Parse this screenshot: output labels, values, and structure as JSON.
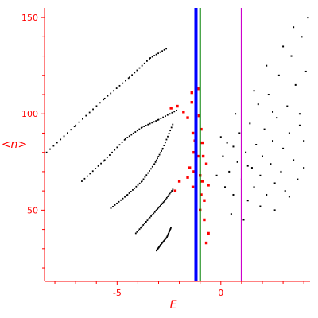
{
  "chart_data": {
    "type": "scatter",
    "title": "",
    "xlabel": "E",
    "ylabel": "<n>",
    "xlim": [
      -8.5,
      4.3
    ],
    "ylim": [
      13,
      155
    ],
    "x_ticks": [
      -5,
      0
    ],
    "y_ticks": [
      50,
      100,
      150
    ],
    "x_tick_labels": [
      "-5",
      "0"
    ],
    "y_tick_labels": [
      "50",
      "100",
      "150"
    ],
    "grid": false,
    "legend": "none",
    "colors": {
      "axis": "#ff0000",
      "black_points": "#000000",
      "red_points": "#ff0000",
      "blue_line": "#0000ff",
      "green_line": "#008000",
      "magenta_line": "#cc00cc"
    },
    "vertical_lines": [
      {
        "x": -1.2,
        "color": "#0000ff"
      },
      {
        "x": -1.0,
        "color": "#008000"
      },
      {
        "x": 1.0,
        "color": "#cc00cc"
      }
    ],
    "series": [
      {
        "color": "#000000",
        "style": "dotted-curve",
        "points": [
          [
            -8.4,
            80
          ],
          [
            -7.0,
            94
          ],
          [
            -5.6,
            108
          ],
          [
            -4.4,
            119
          ],
          [
            -3.4,
            129
          ],
          [
            -2.6,
            134
          ]
        ]
      },
      {
        "color": "#000000",
        "style": "dotted-curve",
        "points": [
          [
            -6.7,
            65
          ],
          [
            -5.6,
            76
          ],
          [
            -4.6,
            87
          ],
          [
            -3.8,
            93
          ],
          [
            -3.0,
            97
          ],
          [
            -2.1,
            102
          ]
        ]
      },
      {
        "color": "#000000",
        "style": "dotted-curve",
        "points": [
          [
            -5.3,
            51
          ],
          [
            -4.5,
            58
          ],
          [
            -3.8,
            65
          ],
          [
            -3.2,
            74
          ],
          [
            -2.8,
            82
          ],
          [
            -2.3,
            95
          ]
        ]
      },
      {
        "color": "#000000",
        "style": "dotted-curve",
        "points": [
          [
            -4.1,
            38
          ],
          [
            -3.6,
            44
          ],
          [
            -3.1,
            50
          ],
          [
            -2.7,
            55
          ],
          [
            -2.3,
            61
          ]
        ]
      },
      {
        "color": "#000000",
        "style": "dotted-curve",
        "points": [
          [
            -3.1,
            29
          ],
          [
            -2.9,
            32
          ],
          [
            -2.6,
            36
          ],
          [
            -2.4,
            41
          ]
        ]
      },
      {
        "color": "#000000",
        "style": "scatter-cloud",
        "points": [
          [
            0.2,
            62
          ],
          [
            0.4,
            70
          ],
          [
            0.3,
            85
          ],
          [
            0.6,
            58
          ],
          [
            0.8,
            75
          ],
          [
            0.9,
            90
          ],
          [
            1.0,
            66
          ],
          [
            1.2,
            80
          ],
          [
            1.3,
            55
          ],
          [
            1.4,
            95
          ],
          [
            1.5,
            72
          ],
          [
            1.6,
            62
          ],
          [
            1.7,
            84
          ],
          [
            1.8,
            105
          ],
          [
            1.9,
            68
          ],
          [
            2.0,
            78
          ],
          [
            2.1,
            92
          ],
          [
            2.2,
            58
          ],
          [
            2.3,
            110
          ],
          [
            2.4,
            74
          ],
          [
            2.5,
            86
          ],
          [
            2.6,
            64
          ],
          [
            2.7,
            98
          ],
          [
            2.8,
            120
          ],
          [
            2.9,
            70
          ],
          [
            3.0,
            82
          ],
          [
            3.1,
            60
          ],
          [
            3.2,
            104
          ],
          [
            3.3,
            90
          ],
          [
            3.4,
            130
          ],
          [
            3.5,
            76
          ],
          [
            3.6,
            115
          ],
          [
            3.7,
            66
          ],
          [
            3.8,
            100
          ],
          [
            3.9,
            140
          ],
          [
            4.0,
            86
          ],
          [
            4.1,
            122
          ],
          [
            4.2,
            150
          ],
          [
            0.5,
            48
          ],
          [
            1.1,
            45
          ],
          [
            0.7,
            100
          ],
          [
            1.6,
            112
          ],
          [
            2.2,
            125
          ],
          [
            3.0,
            135
          ],
          [
            3.5,
            145
          ],
          [
            1.9,
            52
          ],
          [
            2.6,
            50
          ],
          [
            3.3,
            57
          ],
          [
            4.0,
            72
          ],
          [
            3.8,
            94
          ],
          [
            0.1,
            78
          ],
          [
            -0.2,
            68
          ],
          [
            0.0,
            88
          ],
          [
            0.6,
            83
          ],
          [
            1.3,
            73
          ],
          [
            2.5,
            101
          ]
        ]
      },
      {
        "color": "#ff0000",
        "style": "scatter-red",
        "points": [
          [
            -2.4,
            103
          ],
          [
            -2.1,
            104
          ],
          [
            -1.8,
            101
          ],
          [
            -1.6,
            98
          ],
          [
            -1.4,
            106
          ],
          [
            -1.35,
            90
          ],
          [
            -1.3,
            80
          ],
          [
            -1.3,
            70
          ],
          [
            -1.35,
            62
          ],
          [
            -1.2,
            55
          ],
          [
            -1.4,
            111
          ],
          [
            -1.05,
            99
          ],
          [
            -0.95,
            92
          ],
          [
            -0.9,
            85
          ],
          [
            -0.85,
            78
          ],
          [
            -0.9,
            65
          ],
          [
            -0.95,
            58
          ],
          [
            -1.0,
            50
          ],
          [
            -0.8,
            45
          ],
          [
            -0.6,
            38
          ],
          [
            -0.7,
            33
          ],
          [
            -1.1,
            113
          ],
          [
            -1.5,
            72
          ],
          [
            -1.6,
            67
          ],
          [
            -2.0,
            65
          ],
          [
            -2.2,
            60
          ],
          [
            -0.7,
            74
          ],
          [
            -0.6,
            63
          ],
          [
            -1.25,
            86
          ],
          [
            -1.1,
            78
          ],
          [
            -1.0,
            68
          ],
          [
            -0.8,
            55
          ]
        ]
      }
    ]
  }
}
